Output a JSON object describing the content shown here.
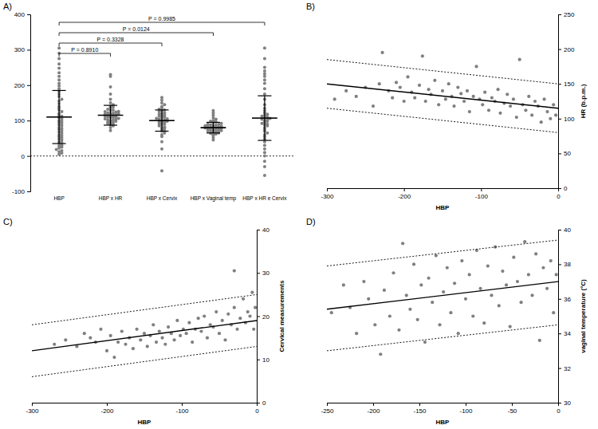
{
  "chart_data": [
    {
      "type": "strip",
      "panel_label": "A)",
      "categories": [
        "HBP",
        "HBP x HR",
        "HBP x Cervix",
        "HBP x Vaginal temp",
        "HBP x HR e Cervix"
      ],
      "values": [
        [
          5,
          8,
          12,
          15,
          18,
          22,
          25,
          28,
          30,
          35,
          38,
          40,
          45,
          48,
          52,
          55,
          58,
          60,
          65,
          68,
          72,
          75,
          78,
          80,
          85,
          88,
          92,
          95,
          98,
          100,
          105,
          108,
          112,
          115,
          120,
          125,
          130,
          135,
          140,
          148,
          155,
          160,
          168,
          175,
          182,
          190,
          198,
          205,
          215,
          225,
          235,
          248,
          260,
          275,
          290,
          305
        ],
        [
          72,
          80,
          85,
          88,
          90,
          92,
          94,
          95,
          96,
          98,
          100,
          101,
          102,
          104,
          105,
          106,
          108,
          109,
          110,
          111,
          112,
          113,
          114,
          115,
          116,
          118,
          119,
          120,
          121,
          122,
          124,
          125,
          126,
          128,
          130,
          132,
          135,
          138,
          140,
          145,
          150,
          160,
          175,
          195,
          225,
          230
        ],
        [
          -42,
          20,
          40,
          55,
          60,
          65,
          70,
          72,
          75,
          78,
          80,
          82,
          85,
          88,
          90,
          92,
          94,
          95,
          96,
          98,
          100,
          102,
          104,
          105,
          106,
          108,
          110,
          112,
          114,
          115,
          118,
          120,
          122,
          125,
          128,
          130,
          132,
          135,
          140,
          145,
          150,
          158,
          165
        ],
        [
          45,
          52,
          58,
          60,
          62,
          64,
          65,
          66,
          68,
          69,
          70,
          71,
          72,
          73,
          74,
          75,
          76,
          77,
          78,
          79,
          80,
          80,
          81,
          82,
          83,
          84,
          85,
          86,
          87,
          88,
          89,
          90,
          92,
          94,
          96,
          98,
          100,
          104,
          108,
          115,
          122,
          128
        ],
        [
          -55,
          -30,
          -15,
          0,
          10,
          20,
          30,
          40,
          48,
          55,
          60,
          65,
          70,
          75,
          80,
          85,
          88,
          90,
          92,
          95,
          98,
          100,
          102,
          104,
          106,
          108,
          110,
          112,
          115,
          118,
          122,
          128,
          135,
          145,
          160,
          175,
          190,
          205,
          215,
          225,
          232,
          240,
          250,
          275,
          305
        ]
      ],
      "mean": [
        110,
        115,
        100,
        80,
        107
      ],
      "sd": [
        75,
        28,
        30,
        15,
        63
      ],
      "color": "#808080",
      "ylim": [
        -100,
        400
      ],
      "yticks": [
        -100,
        0,
        100,
        200,
        300,
        400
      ],
      "reference_line": 0,
      "annotations": [
        {
          "text": "P = 0.8910",
          "from": 0,
          "to": 1
        },
        {
          "text": "P = 0.3328",
          "from": 0,
          "to": 2
        },
        {
          "text": "P = 0.0124",
          "from": 0,
          "to": 3
        },
        {
          "text": "P = 0.9985",
          "from": 0,
          "to": 4
        }
      ]
    },
    {
      "type": "scatter",
      "panel_label": "B)",
      "x_label": "HBP",
      "y_label": "HR (b.p.m.)",
      "xlim": [
        -300,
        0
      ],
      "xticks": [
        -300,
        -200,
        -100,
        0
      ],
      "ylim": [
        0,
        250
      ],
      "yticks": [
        0,
        50,
        100,
        150,
        200,
        250
      ],
      "series": [
        {
          "type": "scatter",
          "marker": "circle",
          "color": "#808080",
          "x": [
            -290,
            -275,
            -262,
            -250,
            -240,
            -232,
            -228,
            -220,
            -215,
            -210,
            -205,
            -200,
            -195,
            -190,
            -186,
            -180,
            -176,
            -172,
            -168,
            -165,
            -160,
            -155,
            -150,
            -146,
            -142,
            -138,
            -135,
            -130,
            -126,
            -122,
            -118,
            -115,
            -110,
            -106,
            -102,
            -98,
            -95,
            -90,
            -86,
            -82,
            -78,
            -75,
            -70,
            -66,
            -62,
            -58,
            -54,
            -50,
            -46,
            -42,
            -38,
            -34,
            -30,
            -26,
            -22,
            -18,
            -14,
            -10,
            -6,
            -3
          ],
          "values": [
            128,
            140,
            132,
            145,
            118,
            150,
            195,
            140,
            130,
            152,
            145,
            125,
            160,
            138,
            130,
            148,
            190,
            125,
            142,
            135,
            155,
            120,
            140,
            128,
            150,
            132,
            118,
            145,
            136,
            125,
            140,
            110,
            132,
            175,
            128,
            120,
            138,
            112,
            130,
            125,
            142,
            108,
            122,
            135,
            118,
            128,
            102,
            185,
            120,
            112,
            132,
            105,
            125,
            118,
            95,
            128,
            110,
            100,
            120,
            105
          ]
        },
        {
          "type": "line",
          "line_style": "solid",
          "color": "#000000",
          "x": [
            -300,
            0
          ],
          "values": [
            150,
            115
          ]
        },
        {
          "type": "line",
          "line_style": "dotted",
          "color": "#000000",
          "x": [
            -300,
            0
          ],
          "values": [
            185,
            150
          ]
        },
        {
          "type": "line",
          "line_style": "dotted",
          "color": "#000000",
          "x": [
            -300,
            0
          ],
          "values": [
            115,
            80
          ]
        }
      ]
    },
    {
      "type": "scatter",
      "panel_label": "C)",
      "x_label": "HBP",
      "y_label": "Cervical measurements",
      "xlim": [
        -300,
        0
      ],
      "xticks": [
        -300,
        -200,
        -100,
        0
      ],
      "ylim": [
        0,
        40
      ],
      "yticks": [
        0,
        10,
        20,
        30,
        40
      ],
      "series": [
        {
          "type": "scatter",
          "marker": "circle",
          "color": "#808080",
          "x": [
            -270,
            -255,
            -240,
            -230,
            -222,
            -215,
            -208,
            -200,
            -195,
            -190,
            -185,
            -180,
            -175,
            -170,
            -165,
            -160,
            -155,
            -150,
            -146,
            -142,
            -138,
            -134,
            -130,
            -126,
            -122,
            -118,
            -114,
            -110,
            -106,
            -102,
            -98,
            -94,
            -90,
            -86,
            -82,
            -78,
            -74,
            -70,
            -66,
            -62,
            -58,
            -54,
            -50,
            -46,
            -42,
            -38,
            -34,
            -30,
            -26,
            -22,
            -18,
            -15,
            -12,
            -9,
            -6,
            -4,
            -2,
            -30
          ],
          "values": [
            13.5,
            14.5,
            13,
            16,
            15,
            14,
            17,
            12,
            15.5,
            10.5,
            14,
            16.5,
            13.5,
            15,
            12.5,
            17,
            14.5,
            16,
            13,
            15.5,
            18,
            14,
            16.5,
            15,
            13.5,
            17.5,
            16,
            14.5,
            19,
            15.5,
            17,
            16,
            18.5,
            14,
            17,
            19.5,
            16.5,
            20,
            15,
            18,
            17.5,
            21,
            16,
            19,
            14.5,
            20.5,
            18,
            22,
            17,
            19.5,
            24,
            18.5,
            21,
            20,
            25.5,
            17,
            22,
            30.5
          ]
        },
        {
          "type": "line",
          "line_style": "solid",
          "color": "#000000",
          "x": [
            -300,
            0
          ],
          "values": [
            12,
            19
          ]
        },
        {
          "type": "line",
          "line_style": "dotted",
          "color": "#000000",
          "x": [
            -300,
            0
          ],
          "values": [
            18,
            25
          ]
        },
        {
          "type": "line",
          "line_style": "dotted",
          "color": "#000000",
          "x": [
            -300,
            0
          ],
          "values": [
            6,
            13
          ]
        }
      ]
    },
    {
      "type": "scatter",
      "panel_label": "D)",
      "x_label": "HBP",
      "y_label": "vaginal temperature (°C)",
      "xlim": [
        -250,
        0
      ],
      "xticks": [
        -250,
        -200,
        -150,
        -100,
        -50,
        0
      ],
      "ylim": [
        30,
        40
      ],
      "yticks": [
        30,
        32,
        34,
        36,
        38,
        40
      ],
      "series": [
        {
          "type": "scatter",
          "marker": "circle",
          "color": "#808080",
          "x": [
            -245,
            -232,
            -225,
            -218,
            -210,
            -205,
            -198,
            -192,
            -188,
            -182,
            -178,
            -172,
            -168,
            -164,
            -160,
            -156,
            -152,
            -148,
            -144,
            -140,
            -136,
            -132,
            -128,
            -124,
            -120,
            -116,
            -112,
            -108,
            -104,
            -100,
            -96,
            -92,
            -88,
            -84,
            -80,
            -76,
            -72,
            -68,
            -64,
            -60,
            -56,
            -52,
            -48,
            -44,
            -40,
            -36,
            -32,
            -28,
            -24,
            -20,
            -16,
            -12,
            -8,
            -5,
            -2
          ],
          "values": [
            35.2,
            36.8,
            35.5,
            34.0,
            37.0,
            36.0,
            34.5,
            32.8,
            36.5,
            35.0,
            37.5,
            34.2,
            39.2,
            36.2,
            35.4,
            38.0,
            34.8,
            36.8,
            33.5,
            37.2,
            35.8,
            38.5,
            34.5,
            36.4,
            37.8,
            35.2,
            36.9,
            34.0,
            38.2,
            36.0,
            37.4,
            35.0,
            38.8,
            36.6,
            34.6,
            37.9,
            36.2,
            39.0,
            35.6,
            37.6,
            36.8,
            34.4,
            38.4,
            37.0,
            35.8,
            39.3,
            37.4,
            36.2,
            38.6,
            33.6,
            37.8,
            36.6,
            38.2,
            35.2,
            37.4
          ]
        },
        {
          "type": "line",
          "line_style": "solid",
          "color": "#000000",
          "x": [
            -250,
            0
          ],
          "values": [
            35.4,
            37.0
          ]
        },
        {
          "type": "line",
          "line_style": "dotted",
          "color": "#000000",
          "x": [
            -250,
            0
          ],
          "values": [
            37.9,
            39.4
          ]
        },
        {
          "type": "line",
          "line_style": "dotted",
          "color": "#000000",
          "x": [
            -250,
            0
          ],
          "values": [
            33.0,
            34.5
          ]
        }
      ]
    }
  ]
}
